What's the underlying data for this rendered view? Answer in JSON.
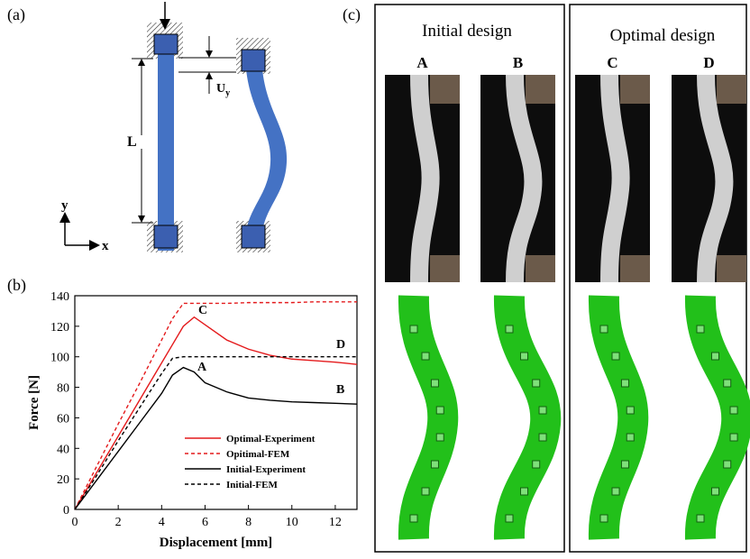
{
  "panel_labels": [
    "(a)",
    "(b)",
    "(c)"
  ],
  "diagram": {
    "length_label": "L",
    "displacement_label": "U",
    "displacement_subscript": "y",
    "x_axis_label": "x",
    "y_axis_label": "y"
  },
  "chart_data": {
    "type": "line",
    "x_label": "Displacement [mm]",
    "y_label": "Force [N]",
    "x": [
      0,
      1,
      2,
      3,
      4,
      4.5,
      5,
      5.5,
      6,
      7,
      8,
      9,
      10,
      11,
      12,
      13
    ],
    "series": [
      {
        "name": "Optimal-Experiment",
        "color": "#e41a1c",
        "dash": false,
        "values": [
          0,
          24,
          48,
          72,
          96,
          108,
          120,
          126,
          121,
          111,
          105,
          101,
          98.5,
          97.5,
          96.5,
          95
        ]
      },
      {
        "name": "Opitimal-FEM",
        "color": "#e41a1c",
        "dash": true,
        "values": [
          0,
          28,
          56,
          83,
          111,
          125,
          135,
          135,
          135,
          135,
          135.5,
          135.5,
          135.5,
          136,
          136,
          136
        ]
      },
      {
        "name": "Initial-Experiment",
        "color": "#000000",
        "dash": false,
        "values": [
          0,
          19,
          38,
          57,
          76,
          88,
          93,
          90,
          83,
          77,
          73,
          71.5,
          70.5,
          70,
          69.5,
          69
        ]
      },
      {
        "name": "Initial-FEM",
        "color": "#000000",
        "dash": true,
        "values": [
          0,
          22,
          45,
          67,
          89,
          99,
          100,
          100,
          100,
          100,
          100,
          100,
          100,
          100,
          100,
          100
        ]
      }
    ],
    "annotations": [
      "C",
      "A",
      "D",
      "B"
    ],
    "xlim": [
      0,
      13
    ],
    "xticks": [
      0,
      2,
      4,
      6,
      8,
      10,
      12
    ],
    "ylim": [
      0,
      140
    ],
    "yticks": [
      0,
      20,
      40,
      60,
      80,
      100,
      120,
      140
    ],
    "legend": "lower right"
  },
  "photos": {
    "groups": [
      {
        "title": "Initial design",
        "cases": [
          "A",
          "B"
        ]
      },
      {
        "title": "Optimal design",
        "cases": [
          "C",
          "D"
        ]
      }
    ]
  }
}
